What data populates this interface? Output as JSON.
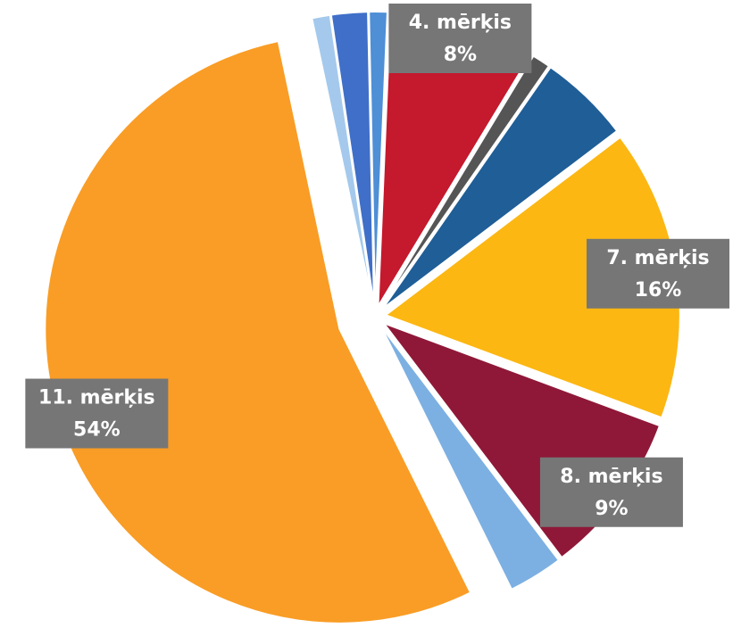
{
  "chart_data": {
    "type": "pie",
    "categories": [
      null,
      null,
      null,
      "4. mērķis",
      null,
      null,
      "7. mērķis",
      "8. mērķis",
      null,
      "11. mērķis"
    ],
    "values": [
      1,
      2,
      1,
      8,
      1,
      5,
      16,
      9,
      3,
      54
    ],
    "value_labels": [
      null,
      null,
      null,
      "8%",
      null,
      null,
      "16%",
      "9%",
      null,
      "54%"
    ],
    "colors": [
      "#a4c9ec",
      "#3f6fc8",
      "#4e8fd6",
      "#c5192d",
      "#555555",
      "#1f5e97",
      "#fcb713",
      "#8f1838",
      "#7cb0e2",
      "#f99d26"
    ]
  }
}
